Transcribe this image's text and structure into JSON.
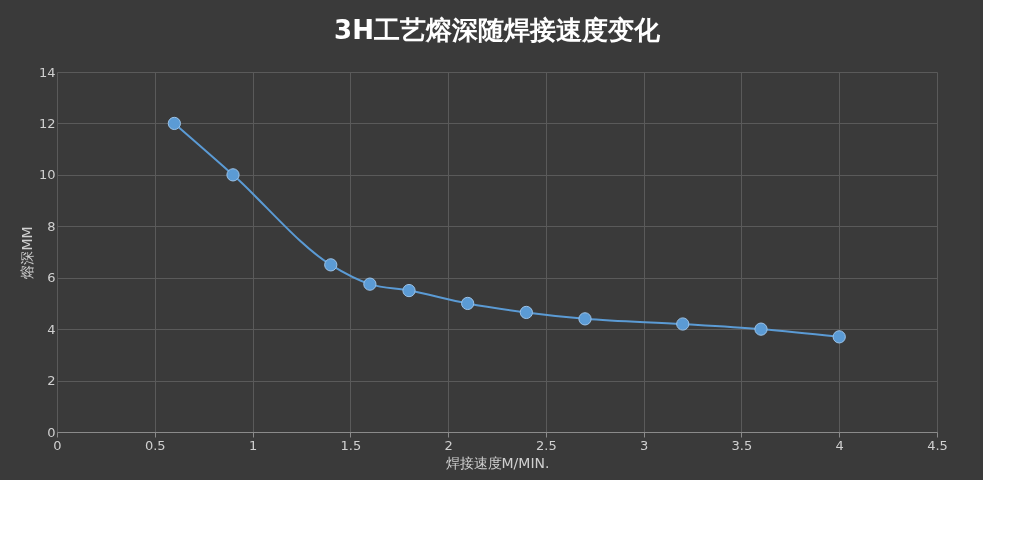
{
  "chart_data": {
    "type": "line",
    "title": "3H工艺熔深随焊接速度变化",
    "xlabel": "焊接速度M/MIN.",
    "ylabel": "熔深MM",
    "x": [
      0.6,
      0.9,
      1.4,
      1.6,
      1.8,
      2.1,
      2.4,
      2.7,
      3.2,
      3.6,
      4
    ],
    "series": [
      {
        "color": "#5b9bd5",
        "values": [
          12,
          10,
          6.5,
          5.75,
          5.5,
          5,
          4.65,
          4.4,
          4.2,
          4,
          3.7
        ]
      }
    ],
    "xlim": [
      0,
      4.5
    ],
    "xticks": [
      0,
      0.5,
      1,
      1.5,
      2,
      2.5,
      3,
      3.5,
      4,
      4.5
    ],
    "ylim": [
      0,
      14
    ],
    "yticks": [
      0,
      2,
      4,
      6,
      8,
      10,
      12,
      14
    ],
    "grid": true,
    "marker": "circle",
    "line_style": "solid"
  }
}
